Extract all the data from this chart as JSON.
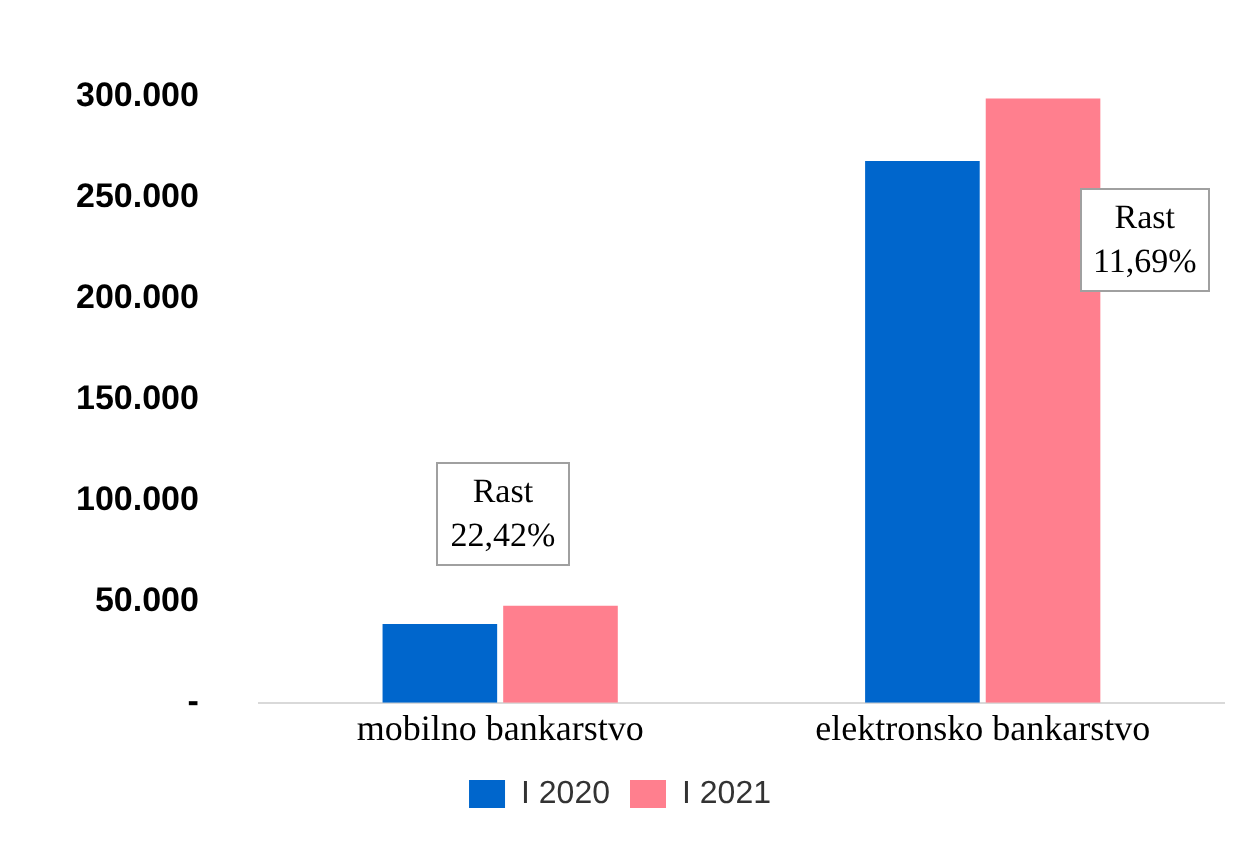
{
  "chart_data": {
    "type": "bar",
    "categories": [
      "mobilno bankarstvo",
      "elektronsko bankarstvo"
    ],
    "series": [
      {
        "name": "I 2020",
        "color": "#0066cc",
        "values": [
          39000,
          268000
        ]
      },
      {
        "name": "I 2021",
        "color": "#ff7f8e",
        "values": [
          48000,
          299000
        ]
      }
    ],
    "ylim": [
      0,
      300000
    ],
    "yticks": [
      {
        "value": 0,
        "label": "-"
      },
      {
        "value": 50000,
        "label": "50.000"
      },
      {
        "value": 100000,
        "label": "100.000"
      },
      {
        "value": 150000,
        "label": "150.000"
      },
      {
        "value": 200000,
        "label": "200.000"
      },
      {
        "value": 250000,
        "label": "250.000"
      },
      {
        "value": 300000,
        "label": "300.000"
      }
    ],
    "grid": false,
    "legend": "bottom",
    "annotations": [
      "Rast 22,42%",
      "Rast 11,69%"
    ]
  }
}
